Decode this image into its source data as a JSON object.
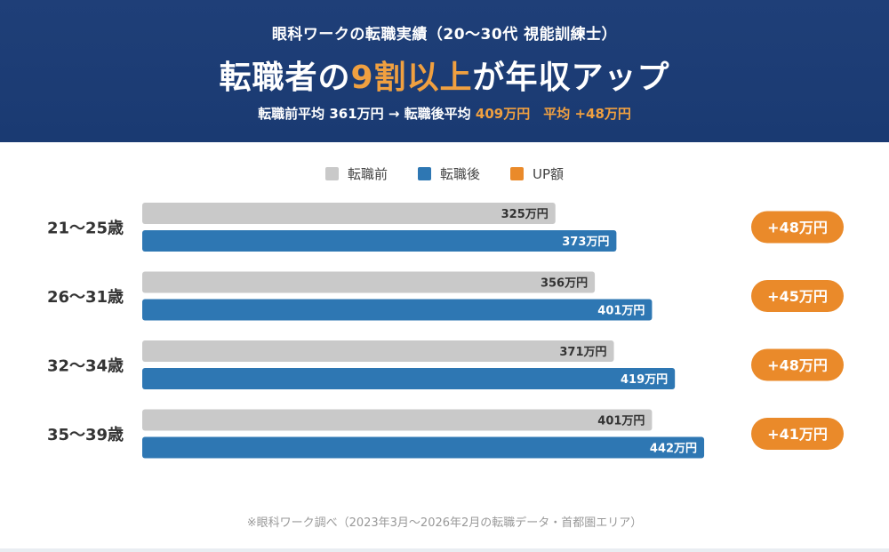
{
  "header": {
    "subtitle": "眼科ワークの転職実績（20〜30代 視能訓練士）",
    "title_pre": "転職者の",
    "title_highlight": "9割以上",
    "title_post": "が年収アップ",
    "summary_pre": "転職前平均 361万円 → 転職後平均 ",
    "summary_after_value": "409万円",
    "summary_gap": "　",
    "summary_up": "平均 +48万円"
  },
  "colors": {
    "header_bg": "#1f3f78",
    "before": "#c9c9c9",
    "after": "#2e77b3",
    "up": "#ea8a2a",
    "highlight": "#f0a040"
  },
  "legend": {
    "before": "転職前",
    "after": "転職後",
    "up": "UP額"
  },
  "chart_data": {
    "type": "bar",
    "orientation": "horizontal",
    "categories": [
      "21〜25歳",
      "26〜31歳",
      "32〜34歳",
      "35〜39歳"
    ],
    "series": [
      {
        "name": "転職前",
        "values": [
          325,
          356,
          371,
          401
        ],
        "labels": [
          "325万円",
          "356万円",
          "371万円",
          "401万円"
        ]
      },
      {
        "name": "転職後",
        "values": [
          373,
          401,
          419,
          442
        ],
        "labels": [
          "373万円",
          "401万円",
          "419万円",
          "442万円"
        ]
      },
      {
        "name": "UP額",
        "values": [
          48,
          45,
          48,
          41
        ],
        "labels": [
          "+48万円",
          "+45万円",
          "+48万円",
          "+41万円"
        ]
      }
    ],
    "legend_position": "top-center",
    "grid": false
  },
  "footnote": "※眼科ワーク調べ（2023年3月〜2026年2月の転職データ・首都圏エリア）"
}
